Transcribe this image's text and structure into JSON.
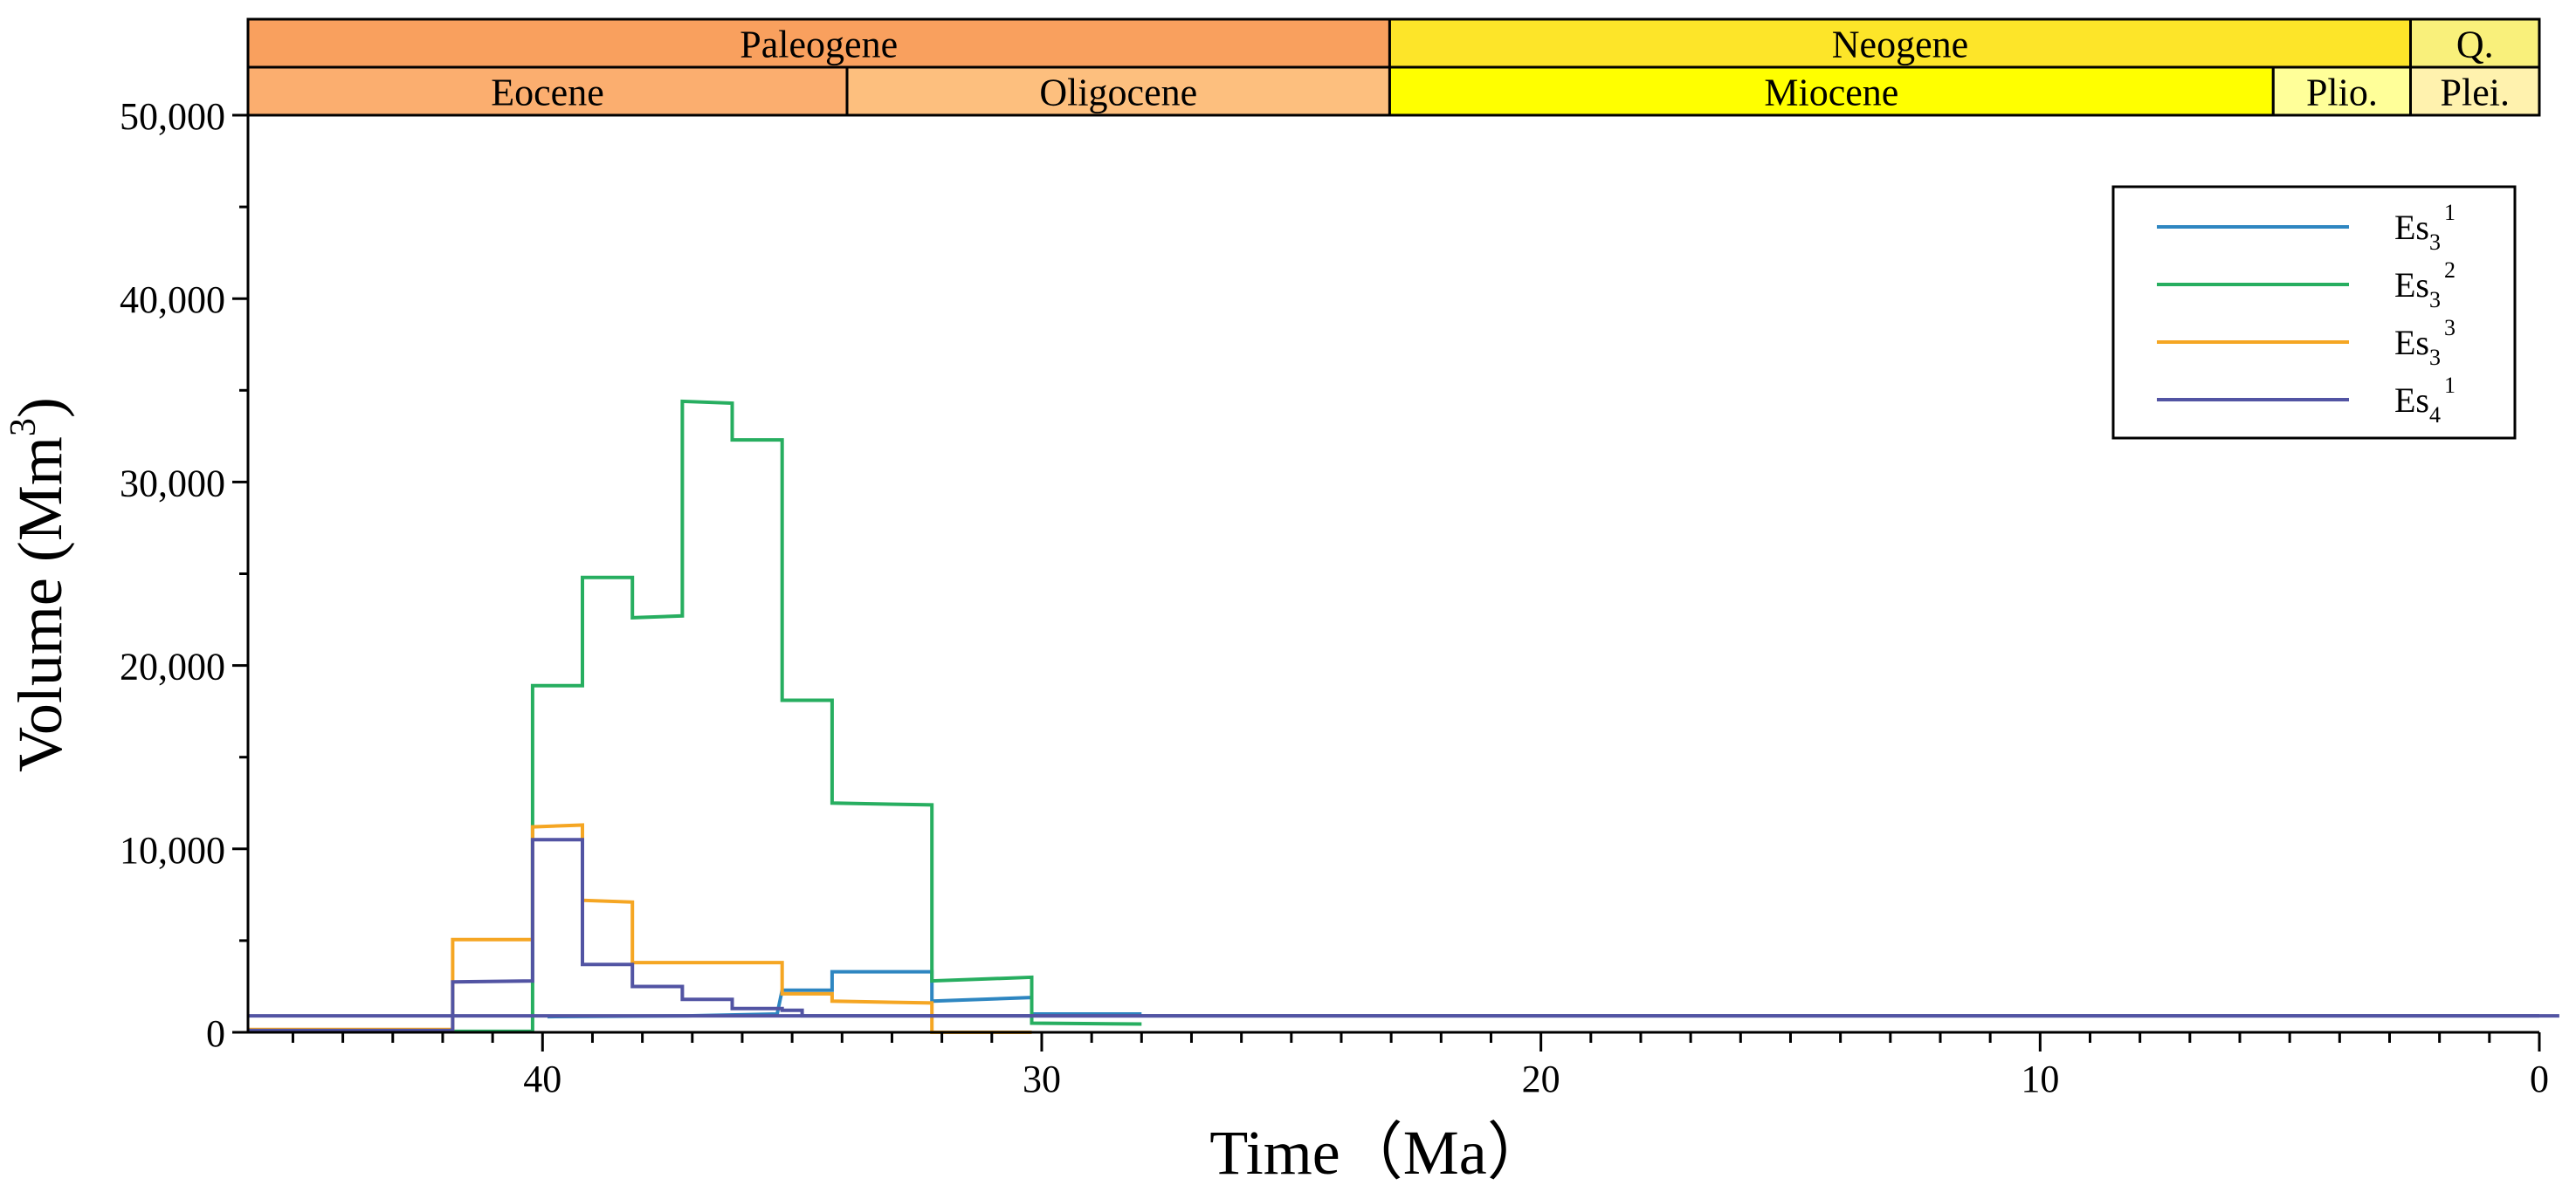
{
  "chart_data": {
    "type": "line",
    "step": true,
    "xlabel": "Time（Ma）",
    "ylabel": "Volume (Mm",
    "ylabel_sup": "3",
    "ylabel_close": ")",
    "xlim": [
      45.9,
      0
    ],
    "ylim": [
      0,
      50000
    ],
    "x_ticks": [
      40,
      30,
      20,
      10,
      0
    ],
    "x_tick_labels": [
      "40",
      "30",
      "20",
      "10",
      "0"
    ],
    "x_minor_step": 1,
    "y_ticks": [
      0,
      10000,
      20000,
      30000,
      40000,
      50000
    ],
    "y_tick_labels": [
      "0",
      "10,000",
      "20,000",
      "30,000",
      "40,000",
      "50,000"
    ],
    "y_minor_step": 5000,
    "legend_position": "top-right",
    "timescale": {
      "periods": [
        {
          "name": "Paleogene",
          "start": 45.9,
          "end": 23.03,
          "color": "#F9A05E"
        },
        {
          "name": "Neogene",
          "start": 23.03,
          "end": 2.58,
          "color": "#FDE529"
        },
        {
          "name": "Q.",
          "start": 2.58,
          "end": 0,
          "color": "#F9F07B"
        }
      ],
      "epochs": [
        {
          "name": "Eocene",
          "start": 45.9,
          "end": 33.9,
          "color": "#FBAE6F"
        },
        {
          "name": "Oligocene",
          "start": 33.9,
          "end": 23.03,
          "color": "#FDBF7E"
        },
        {
          "name": "Miocene",
          "start": 23.03,
          "end": 5.33,
          "color": "#FFFF00"
        },
        {
          "name": "Plio.",
          "start": 5.33,
          "end": 2.58,
          "color": "#FFFF99"
        },
        {
          "name": "Plei.",
          "start": 2.58,
          "end": 0,
          "color": "#FFF2AE"
        }
      ]
    },
    "series": [
      {
        "name": "Es",
        "sub": "3",
        "sup": "1",
        "color": "#2E86C1",
        "points": [
          [
            39.9,
            850
          ],
          [
            37.1,
            900
          ],
          [
            35.3,
            1000
          ],
          [
            35.2,
            2300
          ],
          [
            34.2,
            2300
          ],
          [
            34.2,
            3300
          ],
          [
            32.2,
            3300
          ],
          [
            32.2,
            1700
          ],
          [
            30.2,
            1900
          ],
          [
            30.2,
            1000
          ],
          [
            28.0,
            1000
          ]
        ]
      },
      {
        "name": "Es",
        "sub": "3",
        "sup": "2",
        "color": "#27AE60",
        "points": [
          [
            45.9,
            50
          ],
          [
            40.2,
            50
          ],
          [
            40.2,
            18900
          ],
          [
            39.2,
            18900
          ],
          [
            39.2,
            24800
          ],
          [
            38.2,
            24800
          ],
          [
            38.2,
            22600
          ],
          [
            37.2,
            22700
          ],
          [
            37.2,
            34400
          ],
          [
            36.2,
            34300
          ],
          [
            36.2,
            32300
          ],
          [
            35.2,
            32300
          ],
          [
            35.2,
            18100
          ],
          [
            34.2,
            18100
          ],
          [
            34.2,
            12500
          ],
          [
            32.2,
            12400
          ],
          [
            32.2,
            2800
          ],
          [
            31.2,
            2900
          ],
          [
            30.2,
            3000
          ],
          [
            30.2,
            500
          ],
          [
            28.0,
            450
          ]
        ]
      },
      {
        "name": "Es",
        "sub": "3",
        "sup": "3",
        "color": "#F5A623",
        "points": [
          [
            45.9,
            150
          ],
          [
            41.8,
            150
          ],
          [
            41.8,
            5050
          ],
          [
            40.2,
            5050
          ],
          [
            40.2,
            11200
          ],
          [
            39.2,
            11300
          ],
          [
            39.2,
            7200
          ],
          [
            38.2,
            7100
          ],
          [
            38.2,
            3800
          ],
          [
            35.2,
            3800
          ],
          [
            35.2,
            2100
          ],
          [
            34.2,
            2100
          ],
          [
            34.2,
            1700
          ],
          [
            32.2,
            1600
          ],
          [
            32.2,
            0
          ],
          [
            30.2,
            0
          ]
        ]
      },
      {
        "name": "Es",
        "sub": "4",
        "sup": "1",
        "color": "#5254A3",
        "points": [
          [
            45.9,
            100
          ],
          [
            41.8,
            100
          ],
          [
            41.8,
            2750
          ],
          [
            40.2,
            2800
          ],
          [
            40.2,
            10500
          ],
          [
            39.2,
            10500
          ],
          [
            39.2,
            3700
          ],
          [
            38.2,
            3700
          ],
          [
            38.2,
            2500
          ],
          [
            37.2,
            2500
          ],
          [
            37.2,
            1800
          ],
          [
            36.2,
            1800
          ],
          [
            36.2,
            1300
          ],
          [
            35.2,
            1300
          ],
          [
            35.2,
            1200
          ],
          [
            34.8,
            1200
          ],
          [
            34.8,
            900
          ],
          [
            0,
            900
          ]
        ]
      },
      {
        "name": "background",
        "color": "#5254A3",
        "points": [
          [
            45.9,
            900
          ],
          [
            -0.4,
            900
          ]
        ]
      }
    ]
  }
}
